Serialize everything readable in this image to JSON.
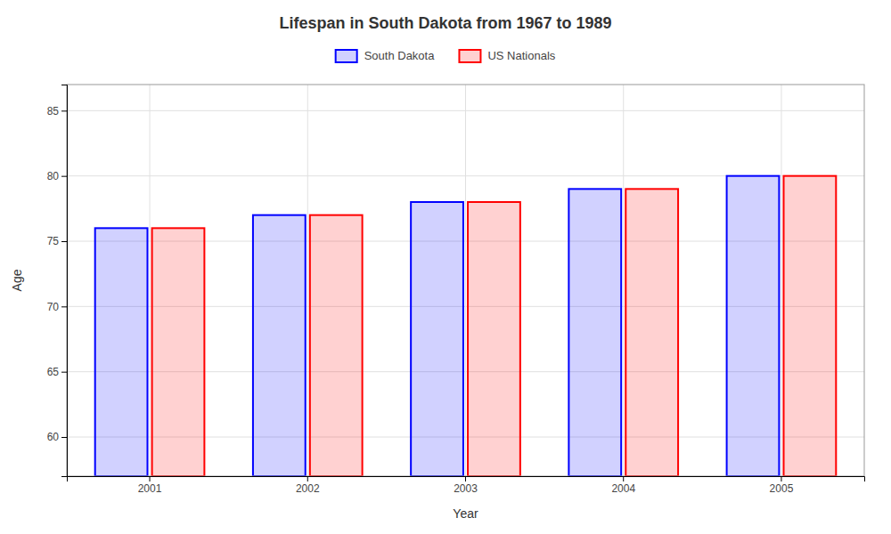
{
  "chart_data": {
    "type": "bar",
    "title": "Lifespan in South Dakota from 1967 to 1989",
    "xlabel": "Year",
    "ylabel": "Age",
    "categories": [
      "2001",
      "2002",
      "2003",
      "2004",
      "2005"
    ],
    "series": [
      {
        "name": "South Dakota",
        "color": "#0000ff",
        "values": [
          76,
          77,
          78,
          79,
          80
        ]
      },
      {
        "name": "US Nationals",
        "color": "#ff0000",
        "values": [
          76,
          77,
          78,
          79,
          80
        ]
      }
    ],
    "ylim": [
      57,
      87
    ],
    "yticks": [
      60,
      65,
      70,
      75,
      80,
      85
    ],
    "grid": true,
    "legend": "top"
  }
}
